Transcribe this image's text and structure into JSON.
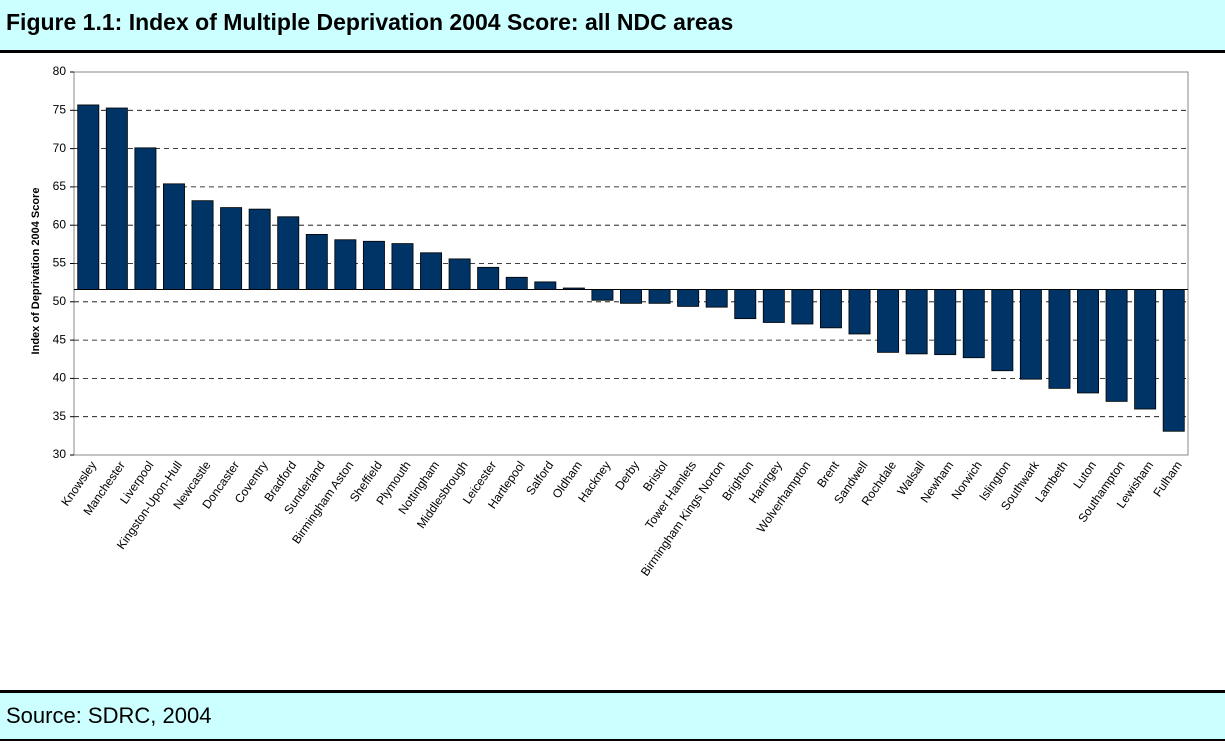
{
  "title": "Figure 1.1: Index of Multiple Deprivation 2004 Score: all NDC areas",
  "source": "Source: SDRC, 2004",
  "chart_data": {
    "type": "bar",
    "y_label": "Index of Deprivation 2004 Score",
    "categories": [
      "Knowsley",
      "Manchester",
      "Liverpool",
      "Kingston-Upon-Hull",
      "Newcastle",
      "Doncaster",
      "Coventry",
      "Bradford",
      "Sunderland",
      "Birmingham Aston",
      "Sheffield",
      "Plymouth",
      "Nottingham",
      "Middlesbrough",
      "Leicester",
      "Hartlepool",
      "Salford",
      "Oldham",
      "Hackney",
      "Derby",
      "Bristol",
      "Tower Hamlets",
      "Birmingham Kings Norton",
      "Brighton",
      "Haringey",
      "Wolverhampton",
      "Brent",
      "Sandwell",
      "Rochdale",
      "Walsall",
      "Newham",
      "Norwich",
      "Islington",
      "Southwark",
      "Lambeth",
      "Luton",
      "Southampton",
      "Lewisham",
      "Fulham"
    ],
    "values": [
      75.7,
      75.3,
      70.1,
      65.4,
      63.2,
      62.3,
      62.1,
      61.1,
      58.8,
      58.1,
      57.9,
      57.6,
      56.4,
      55.6,
      54.5,
      53.2,
      52.6,
      51.8,
      50.2,
      49.8,
      49.8,
      49.4,
      49.3,
      47.8,
      47.3,
      47.1,
      46.6,
      45.8,
      43.4,
      43.2,
      43.1,
      42.7,
      41.0,
      39.9,
      38.7,
      38.1,
      37.0,
      36.0,
      33.1
    ],
    "baseline": 51.6,
    "color": "#003366",
    "ylim": [
      30,
      80
    ],
    "yticks": [
      30,
      35,
      40,
      45,
      50,
      55,
      60,
      65,
      70,
      75,
      80
    ],
    "grid": true
  }
}
